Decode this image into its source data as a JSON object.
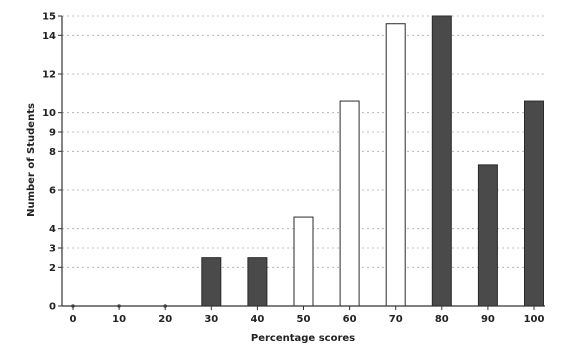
{
  "chart_data": {
    "type": "bar",
    "xlabel": "Percentage scores",
    "ylabel": "Number of Students",
    "categories": [
      "0",
      "10",
      "20",
      "30",
      "40",
      "50",
      "60",
      "70",
      "80",
      "90",
      "100"
    ],
    "values": [
      0,
      0,
      0,
      2.5,
      2.5,
      4.6,
      10.6,
      14.6,
      15,
      7.3,
      10.6
    ],
    "bar_fill": [
      "none",
      "none",
      "none",
      "dark",
      "dark",
      "light",
      "light",
      "light",
      "dark",
      "dark",
      "dark"
    ],
    "y_ticks": [
      "0",
      "2",
      "3",
      "4",
      "6",
      "8",
      "9",
      "10",
      "12",
      "14",
      "15"
    ],
    "y_tick_values": [
      0,
      2,
      3,
      4,
      6,
      8,
      9,
      10,
      12,
      14,
      15
    ],
    "ylim": [
      0,
      15
    ],
    "grid": true,
    "legend": false,
    "colors": {
      "dark": "#4a4a4a",
      "light": "#ffffff",
      "axis": "#333333",
      "grid": "#aaaaaa"
    }
  }
}
